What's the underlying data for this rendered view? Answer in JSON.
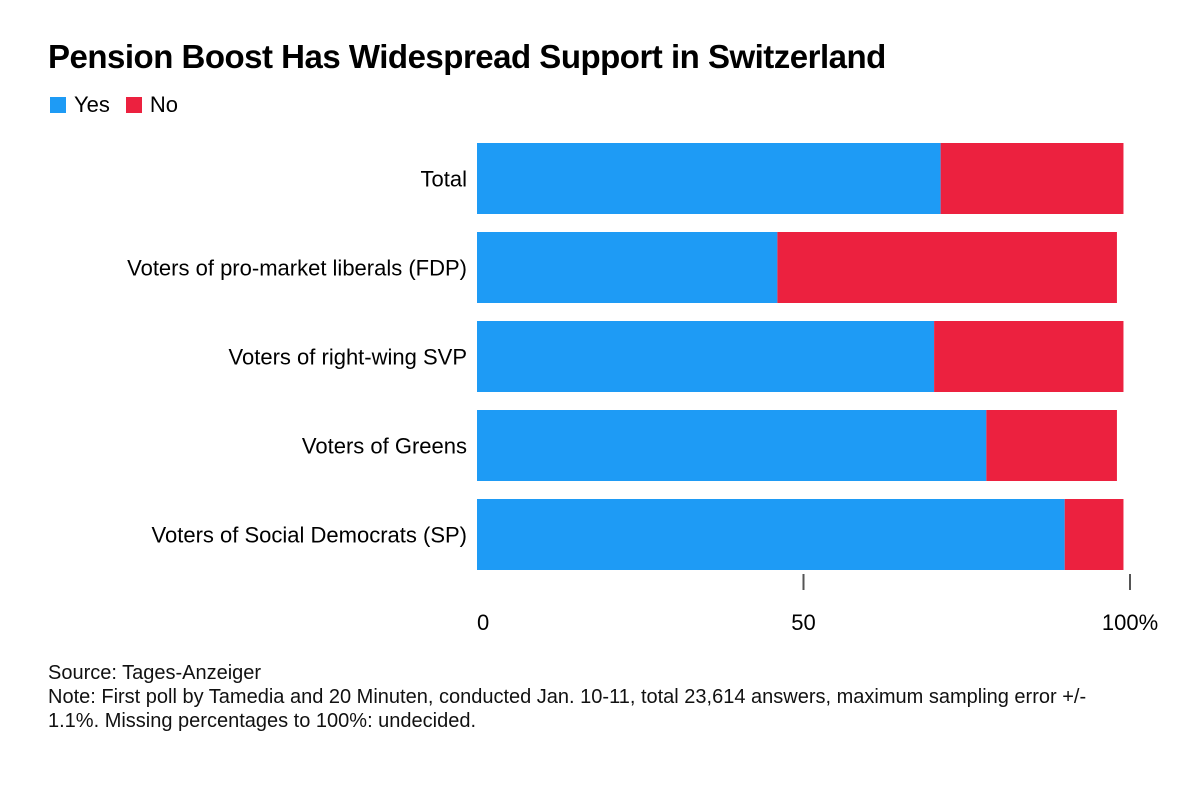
{
  "chart_data": {
    "type": "bar",
    "orientation": "horizontal",
    "stacked": true,
    "title": "Pension Boost Has Widespread Support in Switzerland",
    "categories": [
      "Total",
      "Voters of pro-market liberals (FDP)",
      "Voters of right-wing SVP",
      "Voters of Greens",
      "Voters of Social Democrats (SP)"
    ],
    "series": [
      {
        "name": "Yes",
        "color": "#1e9bf5",
        "values": [
          71,
          46,
          70,
          78,
          90
        ]
      },
      {
        "name": "No",
        "color": "#ec213f",
        "values": [
          28,
          52,
          29,
          20,
          9
        ]
      }
    ],
    "xlim": [
      0,
      100
    ],
    "xticks": [
      "0",
      "50",
      "100%"
    ],
    "grid": false,
    "legend": "top-left",
    "source": "Source: Tages-Anzeiger",
    "note": "Note: First poll by Tamedia and 20 Minuten, conducted Jan. 10-11, total 23,614 answers, maximum sampling error +/- 1.1%. Missing percentages to 100%: undecided."
  }
}
